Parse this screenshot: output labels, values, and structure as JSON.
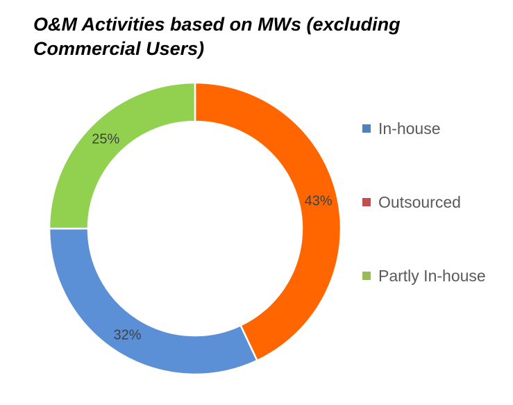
{
  "chart_data": {
    "type": "pie",
    "title": "O&M Activities based on MWs (excluding Commercial Users)",
    "donut": true,
    "slices": [
      {
        "label": "Outsourced",
        "value": 43,
        "display": "43%",
        "color": "#FF6600"
      },
      {
        "label": "In-house",
        "value": 32,
        "display": "32%",
        "color": "#5B8FD6"
      },
      {
        "label": "Partly In-house",
        "value": 25,
        "display": "25%",
        "color": "#92D050"
      }
    ],
    "legend": {
      "placement": "right",
      "items": [
        {
          "label": "In-house",
          "color": "#4F81BD"
        },
        {
          "label": "Outsourced",
          "color": "#C0504D"
        },
        {
          "label": "Partly In-house",
          "color": "#9BBB59"
        }
      ]
    },
    "label_color": "#404040"
  }
}
